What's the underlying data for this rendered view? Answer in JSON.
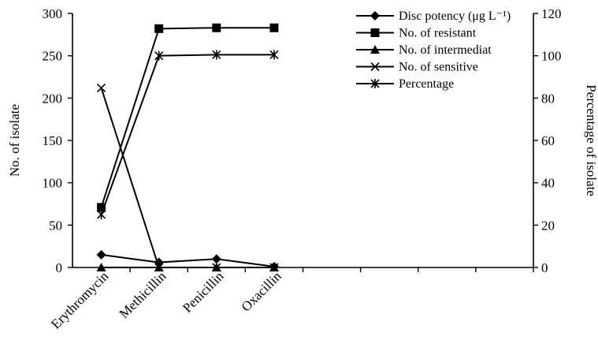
{
  "chart_data": {
    "type": "line",
    "categories": [
      "Erythromycin",
      "Methicillin",
      "Penicillin",
      "Oxacillin"
    ],
    "x_slots": 8,
    "ylabel": "No. of isolate",
    "y2label": "Percentage of isolate",
    "ylim": [
      0,
      300
    ],
    "yticks": [
      0,
      50,
      100,
      150,
      200,
      250,
      300
    ],
    "y2lim": [
      0,
      120
    ],
    "y2ticks": [
      0,
      20,
      40,
      60,
      80,
      100,
      120
    ],
    "grid": false,
    "legend_placement": "top-right",
    "series": [
      {
        "name": "Disc potency (μg L⁻¹)",
        "marker": "diamond",
        "axis": "left",
        "values": [
          15,
          6,
          10,
          1
        ]
      },
      {
        "name": "No. of resistant",
        "marker": "square",
        "axis": "left",
        "values": [
          71,
          282,
          283,
          283
        ]
      },
      {
        "name": "No. of intermediat",
        "marker": "triangle",
        "axis": "left",
        "values": [
          0,
          0,
          0,
          0
        ]
      },
      {
        "name": "No. of sensitive",
        "marker": "x",
        "axis": "left",
        "values": [
          212,
          0,
          0,
          0
        ]
      },
      {
        "name": "Percentage",
        "marker": "asterisk",
        "axis": "right",
        "values": [
          25,
          100,
          100.5,
          100.5
        ]
      }
    ]
  }
}
